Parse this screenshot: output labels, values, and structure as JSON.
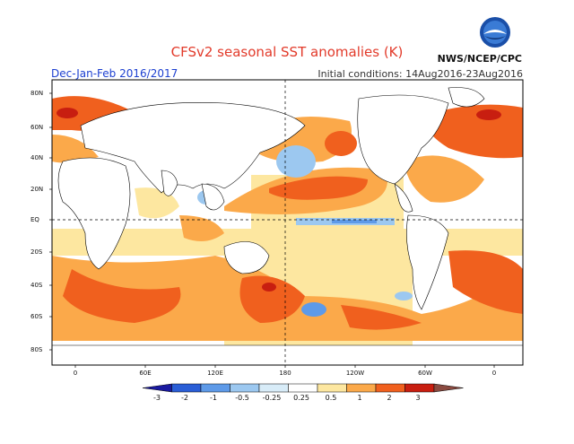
{
  "title": "CFSv2 seasonal SST anomalies (K)",
  "season": "Dec-Jan-Feb 2016/2017",
  "initial_conditions": "Initial conditions: 14Aug2016-23Aug2016",
  "agency": "NWS/NCEP/CPC",
  "logo_text": "NOAA",
  "logo_colors": {
    "ring": "#1a4fa8",
    "bird": "#ffffff",
    "sky": "#3a7bd5"
  },
  "y_ticks": [
    "80N",
    "60N",
    "40N",
    "20N",
    "EQ",
    "20S",
    "40S",
    "60S",
    "80S"
  ],
  "x_ticks": [
    "0",
    "60E",
    "120E",
    "180",
    "120W",
    "60W",
    "0"
  ],
  "colorbar": {
    "labels": [
      "-3",
      "-2",
      "-1",
      "-0.5",
      "-0.25",
      "0.25",
      "0.5",
      "1",
      "2",
      "3"
    ],
    "colors": [
      "#1a1aa0",
      "#2a5ed6",
      "#5e9ae8",
      "#9cc8f0",
      "#d8ecf8",
      "#ffffff",
      "#fde7a0",
      "#fba94a",
      "#f0601e",
      "#c81e10",
      "#8a4a40"
    ]
  }
}
